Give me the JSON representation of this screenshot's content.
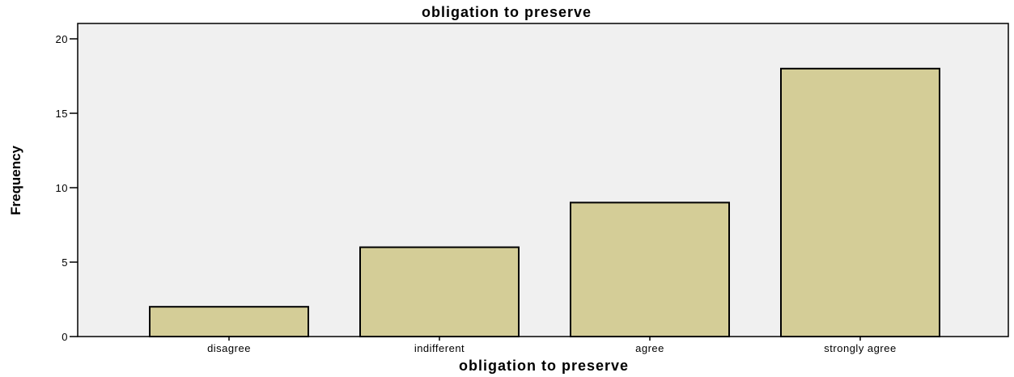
{
  "chart_data": {
    "type": "bar",
    "title": "obligation to preserve",
    "xlabel": "obligation to preserve",
    "ylabel": "Frequency",
    "categories": [
      "disagree",
      "indifferent",
      "agree",
      "strongly agree"
    ],
    "values": [
      2,
      6,
      9,
      18
    ],
    "ylim": [
      0,
      20
    ],
    "yticks": [
      0,
      5,
      10,
      15,
      20
    ],
    "grid": false,
    "legend": "none",
    "colors": {
      "bar_fill": "#d4cd97",
      "bar_stroke": "#000000",
      "plot_background": "#f0f0f0"
    }
  }
}
